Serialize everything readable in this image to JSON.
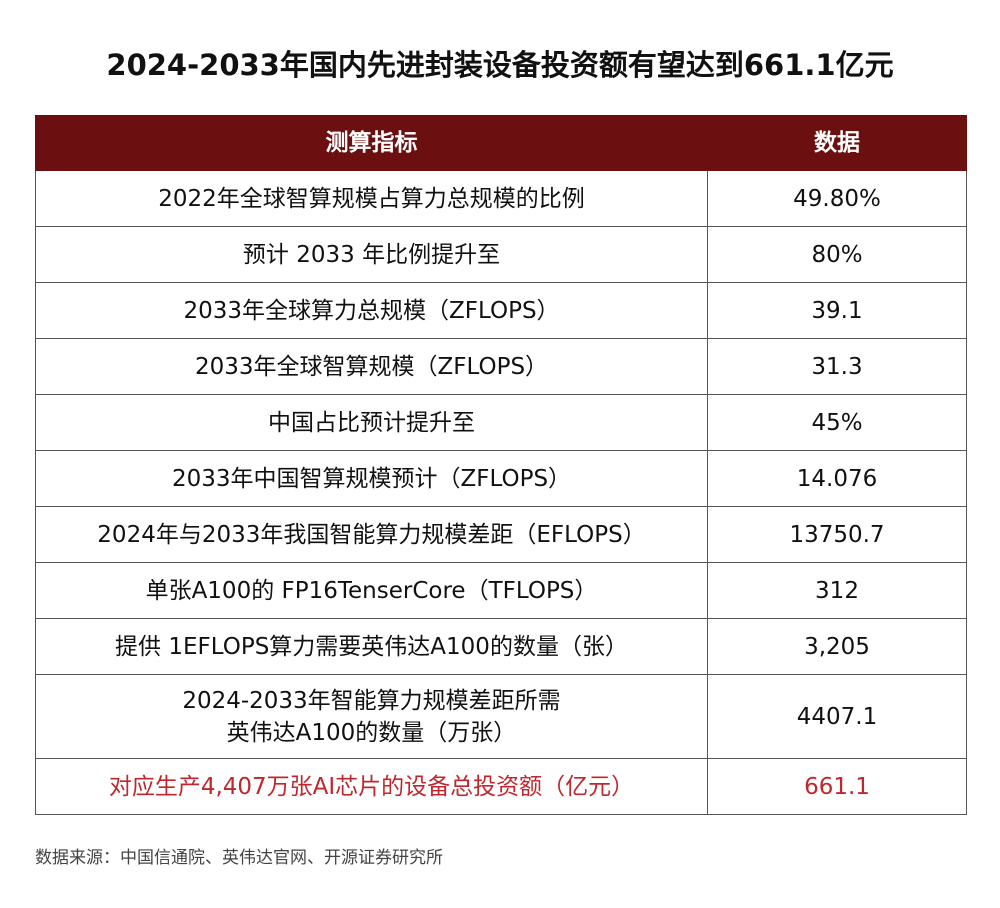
{
  "title": "2024-2033年国内先进封装设备投资额有望达到661.1亿元",
  "table": {
    "header": [
      "测算指标",
      "数据"
    ],
    "rows": [
      [
        "2022年全球智算规模占算力总规模的比例",
        "49.80%"
      ],
      [
        "预计 2033 年比例提升至",
        "80%"
      ],
      [
        "2033年全球算力总规模（ZFLOPS）",
        "39.1"
      ],
      [
        "2033年全球智算规模（ZFLOPS）",
        "31.3"
      ],
      [
        "中国占比预计提升至",
        "45%"
      ],
      [
        "2033年中国智算规模预计（ZFLOPS）",
        "14.076"
      ],
      [
        "2024年与2033年我国智能算力规模差距（EFLOPS）",
        "13750.7"
      ],
      [
        "单张A100的 FP16TenserCore（TFLOPS）",
        "312"
      ],
      [
        "提供 1EFLOPS算力需要英伟达A100的数量（张）",
        "3,205"
      ],
      [
        "2024-2033年智能算力规模差距所需\n英伟达A100的数量（万张）",
        "4407.1"
      ],
      [
        "对应生产4,407万张AI芯片的设备总投资额（亿元）",
        "661.1"
      ]
    ]
  },
  "source": "数据来源：中国信通院、英伟达官网、开源证券研究所"
}
